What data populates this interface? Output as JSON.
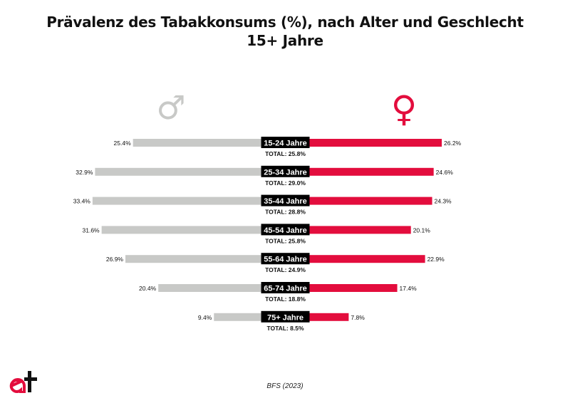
{
  "chart_data": {
    "type": "bar",
    "title_line1": "Prävalenz des Tabakkonsums (%), nach Alter und Geschlecht",
    "title_line2": "15+ Jahre",
    "categories": [
      "15-24 Jahre",
      "25-34 Jahre",
      "35-44 Jahre",
      "45-54 Jahre",
      "55-64 Jahre",
      "65-74 Jahre",
      "75+ Jahre"
    ],
    "series": [
      {
        "name": "Männer",
        "symbol": "♂",
        "color": "#c8c9c7",
        "values": [
          25.4,
          32.9,
          33.4,
          31.6,
          26.9,
          20.4,
          9.4
        ],
        "labels": [
          "25.4%",
          "32.9%",
          "33.4%",
          "31.6%",
          "26.9%",
          "20.4%",
          "9.4%"
        ]
      },
      {
        "name": "Frauen",
        "symbol": "♀",
        "color": "#e30d3d",
        "values": [
          26.2,
          24.6,
          24.3,
          20.1,
          22.9,
          17.4,
          7.8
        ],
        "labels": [
          "26.2%",
          "24.6%",
          "24.3%",
          "20.1%",
          "22.9%",
          "17.4%",
          "7.8%"
        ]
      }
    ],
    "totals": [
      "TOTAL: 25.8%",
      "TOTAL: 29.0%",
      "TOTAL: 28.8%",
      "TOTAL: 25.8%",
      "TOTAL: 24.9%",
      "TOTAL: 18.8%",
      "TOTAL: 8.5%"
    ],
    "source": "BFS (2023)"
  },
  "colors": {
    "male": "#c8c9c7",
    "female": "#e30d3d",
    "label_bg": "#000000",
    "logo_red": "#e30d3d",
    "logo_black": "#111111"
  }
}
